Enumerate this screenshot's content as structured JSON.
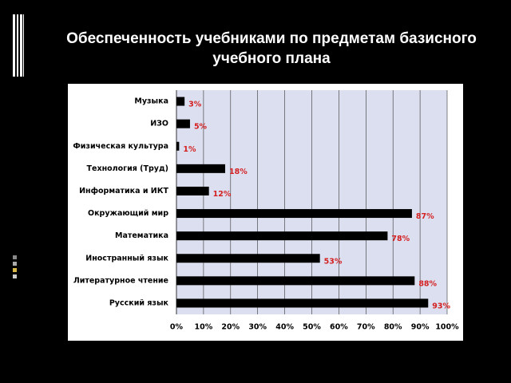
{
  "chart_data": {
    "type": "bar",
    "orientation": "horizontal",
    "title": "Обеспеченность учебниками по предметам базисного учебного плана",
    "categories": [
      "Музыка",
      "ИЗО",
      "Физическая культура",
      "Технология (Труд)",
      "Информатика и ИКТ",
      "Окружающий мир",
      "Математика",
      "Иностранный язык",
      "Литературное чтение",
      "Русский язык"
    ],
    "values": [
      3,
      5,
      1,
      18,
      12,
      87,
      78,
      53,
      88,
      93
    ],
    "value_labels": [
      "3%",
      "5%",
      "1%",
      "18%",
      "12%",
      "87%",
      "78%",
      "53%",
      "88%",
      "93%"
    ],
    "color": "#000000",
    "xlim": [
      0,
      100
    ],
    "xticks": [
      {
        "value": 0,
        "label": "0%"
      },
      {
        "value": 10,
        "label": "10%"
      },
      {
        "value": 20,
        "label": "20%"
      },
      {
        "value": 30,
        "label": "30%"
      },
      {
        "value": 40,
        "label": "40%"
      },
      {
        "value": 50,
        "label": "50%"
      },
      {
        "value": 60,
        "label": "60%"
      },
      {
        "value": 70,
        "label": "70%"
      },
      {
        "value": 80,
        "label": "80%"
      },
      {
        "value": 90,
        "label": "90%"
      },
      {
        "value": 100,
        "label": "100%"
      }
    ],
    "grid": true
  }
}
